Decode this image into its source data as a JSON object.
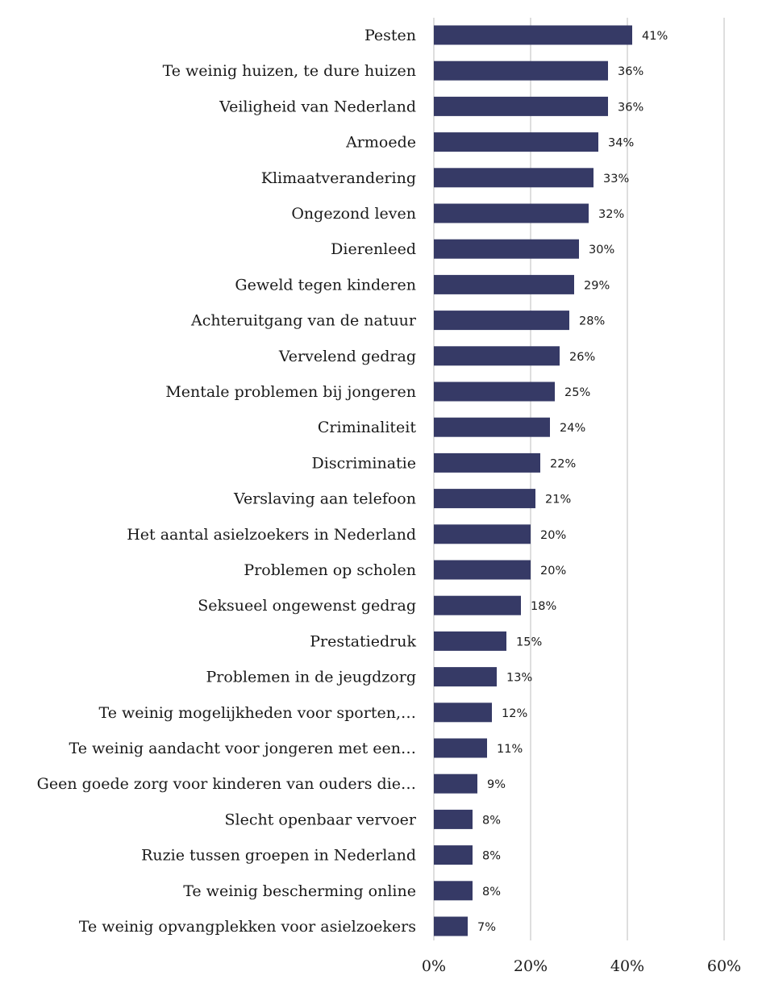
{
  "chart_data": {
    "type": "bar",
    "orientation": "horizontal",
    "categories": [
      "Pesten",
      "Te weinig huizen, te dure huizen",
      "Veiligheid van Nederland",
      "Armoede",
      "Klimaatverandering",
      "Ongezond leven",
      "Dierenleed",
      "Geweld tegen kinderen",
      "Achteruitgang van de natuur",
      "Vervelend gedrag",
      "Mentale problemen bij jongeren",
      "Criminaliteit",
      "Discriminatie",
      "Verslaving aan telefoon",
      "Het aantal asielzoekers in Nederland",
      "Problemen op scholen",
      "Seksueel ongewenst gedrag",
      "Prestatiedruk",
      "Problemen in de jeugdzorg",
      "Te weinig mogelijkheden voor sporten,…",
      "Te weinig aandacht voor jongeren met een…",
      "Geen goede zorg voor kinderen van ouders die…",
      "Slecht openbaar vervoer",
      "Ruzie tussen groepen in Nederland",
      "Te weinig bescherming online",
      "Te weinig opvangplekken voor asielzoekers"
    ],
    "values": [
      41,
      36,
      36,
      34,
      33,
      32,
      30,
      29,
      28,
      26,
      25,
      24,
      22,
      21,
      20,
      20,
      18,
      15,
      13,
      12,
      11,
      9,
      8,
      8,
      8,
      7
    ],
    "data_labels": [
      "41%",
      "36%",
      "36%",
      "34%",
      "33%",
      "32%",
      "30%",
      "29%",
      "28%",
      "26%",
      "25%",
      "24%",
      "22%",
      "21%",
      "20%",
      "20%",
      "18%",
      "15%",
      "13%",
      "12%",
      "11%",
      "9%",
      "8%",
      "8%",
      "8%",
      "7%"
    ],
    "x_ticks": [
      0,
      20,
      40,
      60
    ],
    "x_tick_labels": [
      "0%",
      "20%",
      "40%",
      "60%"
    ],
    "xlim": [
      0,
      60
    ],
    "grid": "vertical",
    "legend": "none",
    "bar_color": "#363a66"
  }
}
